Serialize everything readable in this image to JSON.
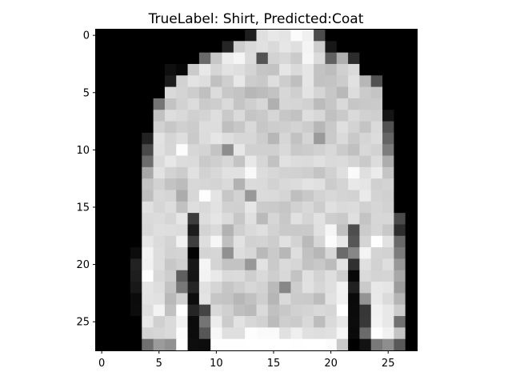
{
  "chart_data": {
    "type": "heatmap",
    "title": "TrueLabel: Shirt, Predicted:Coat",
    "xlabel": "",
    "ylabel": "",
    "colormap": "gray",
    "value_range": [
      0,
      255
    ],
    "xlim": [
      -0.5,
      27.5
    ],
    "ylim": [
      27.5,
      -0.5
    ],
    "x_ticks": [
      0,
      5,
      10,
      15,
      20,
      25
    ],
    "y_ticks": [
      0,
      5,
      10,
      15,
      20,
      25
    ],
    "grid": false,
    "image": [
      [
        0,
        0,
        0,
        0,
        0,
        0,
        0,
        0,
        0,
        0,
        0,
        0,
        0,
        30,
        223,
        232,
        228,
        251,
        240,
        75,
        0,
        0,
        0,
        0,
        0,
        0,
        0,
        0
      ],
      [
        0,
        0,
        0,
        0,
        0,
        0,
        0,
        0,
        0,
        0,
        0,
        37,
        205,
        217,
        225,
        218,
        230,
        223,
        244,
        205,
        23,
        0,
        0,
        0,
        0,
        0,
        0,
        0
      ],
      [
        0,
        0,
        0,
        0,
        0,
        0,
        0,
        0,
        0,
        106,
        199,
        236,
        245,
        219,
        83,
        210,
        215,
        203,
        246,
        219,
        97,
        175,
        44,
        0,
        0,
        0,
        0,
        0
      ],
      [
        0,
        0,
        0,
        0,
        0,
        0,
        15,
        7,
        202,
        232,
        214,
        226,
        222,
        212,
        197,
        195,
        230,
        218,
        229,
        195,
        189,
        208,
        218,
        0,
        0,
        0,
        0,
        0
      ],
      [
        0,
        0,
        0,
        0,
        0,
        0,
        28,
        210,
        227,
        222,
        193,
        207,
        232,
        205,
        201,
        222,
        205,
        191,
        229,
        194,
        196,
        204,
        225,
        183,
        81,
        0,
        0,
        0
      ],
      [
        0,
        0,
        0,
        0,
        0,
        0,
        217,
        212,
        205,
        192,
        220,
        200,
        196,
        183,
        188,
        195,
        215,
        207,
        227,
        213,
        199,
        185,
        221,
        203,
        196,
        0,
        0,
        0
      ],
      [
        0,
        0,
        0,
        0,
        0,
        116,
        195,
        210,
        220,
        203,
        206,
        218,
        197,
        207,
        215,
        176,
        214,
        213,
        209,
        187,
        198,
        217,
        198,
        201,
        202,
        0,
        0,
        0
      ],
      [
        0,
        0,
        0,
        0,
        0,
        193,
        221,
        217,
        208,
        212,
        222,
        202,
        218,
        197,
        201,
        214,
        199,
        194,
        222,
        215,
        193,
        202,
        218,
        209,
        207,
        21,
        0,
        0
      ],
      [
        0,
        0,
        0,
        0,
        0,
        209,
        199,
        208,
        204,
        221,
        221,
        191,
        199,
        217,
        199,
        205,
        207,
        211,
        204,
        183,
        201,
        223,
        211,
        196,
        218,
        82,
        0,
        0
      ],
      [
        0,
        0,
        0,
        0,
        34,
        226,
        213,
        222,
        202,
        220,
        230,
        222,
        215,
        215,
        205,
        183,
        214,
        194,
        213,
        155,
        202,
        218,
        201,
        213,
        220,
        101,
        0,
        0
      ],
      [
        0,
        0,
        0,
        0,
        73,
        224,
        214,
        252,
        215,
        212,
        196,
        141,
        231,
        208,
        208,
        208,
        217,
        201,
        204,
        209,
        216,
        203,
        192,
        216,
        210,
        125,
        0,
        0
      ],
      [
        0,
        0,
        0,
        0,
        108,
        218,
        231,
        220,
        219,
        202,
        207,
        215,
        195,
        232,
        214,
        194,
        225,
        220,
        219,
        224,
        218,
        219,
        212,
        202,
        220,
        173,
        0,
        0
      ],
      [
        0,
        0,
        0,
        0,
        168,
        226,
        211,
        204,
        225,
        210,
        216,
        225,
        225,
        249,
        220,
        215,
        210,
        209,
        206,
        196,
        209,
        223,
        250,
        223,
        235,
        197,
        0,
        0
      ],
      [
        0,
        0,
        0,
        0,
        195,
        210,
        195,
        188,
        216,
        214,
        212,
        218,
        178,
        219,
        218,
        210,
        217,
        220,
        227,
        224,
        204,
        212,
        232,
        229,
        208,
        211,
        0,
        0
      ],
      [
        0,
        0,
        0,
        0,
        190,
        216,
        213,
        172,
        215,
        254,
        228,
        199,
        210,
        152,
        219,
        218,
        213,
        191,
        200,
        211,
        216,
        212,
        210,
        234,
        211,
        208,
        0,
        0
      ],
      [
        0,
        0,
        0,
        0,
        224,
        214,
        221,
        193,
        222,
        217,
        226,
        209,
        208,
        230,
        203,
        202,
        198,
        209,
        216,
        205,
        224,
        218,
        220,
        209,
        214,
        210,
        0,
        0
      ],
      [
        0,
        0,
        0,
        0,
        218,
        220,
        214,
        230,
        60,
        221,
        229,
        219,
        199,
        224,
        186,
        214,
        200,
        225,
        213,
        225,
        206,
        202,
        224,
        196,
        215,
        215,
        75,
        0
      ],
      [
        0,
        0,
        0,
        0,
        216,
        223,
        222,
        220,
        27,
        211,
        218,
        178,
        207,
        218,
        223,
        210,
        202,
        201,
        202,
        224,
        246,
        192,
        78,
        203,
        214,
        200,
        46,
        0
      ],
      [
        0,
        0,
        0,
        0,
        230,
        219,
        212,
        241,
        62,
        222,
        246,
        192,
        226,
        209,
        211,
        205,
        225,
        211,
        186,
        214,
        252,
        232,
        86,
        212,
        254,
        226,
        105,
        0
      ],
      [
        0,
        0,
        0,
        12,
        243,
        221,
        210,
        212,
        3,
        212,
        214,
        144,
        221,
        215,
        185,
        202,
        183,
        222,
        193,
        183,
        215,
        107,
        135,
        244,
        212,
        210,
        124,
        0
      ],
      [
        0,
        0,
        0,
        34,
        241,
        221,
        199,
        208,
        24,
        245,
        212,
        195,
        195,
        152,
        226,
        202,
        218,
        214,
        195,
        200,
        188,
        227,
        48,
        224,
        210,
        222,
        152,
        0
      ],
      [
        0,
        0,
        0,
        30,
        255,
        216,
        206,
        95,
        20,
        243,
        233,
        218,
        219,
        206,
        217,
        206,
        216,
        195,
        224,
        211,
        222,
        206,
        7,
        218,
        212,
        213,
        168,
        0
      ],
      [
        0,
        0,
        0,
        24,
        228,
        222,
        195,
        120,
        36,
        225,
        213,
        198,
        206,
        215,
        210,
        186,
        135,
        205,
        225,
        214,
        223,
        242,
        32,
        202,
        232,
        229,
        156,
        0
      ],
      [
        0,
        0,
        0,
        11,
        227,
        225,
        185,
        209,
        12,
        227,
        198,
        196,
        183,
        193,
        207,
        182,
        218,
        203,
        202,
        189,
        226,
        241,
        10,
        148,
        233,
        219,
        181,
        0
      ],
      [
        0,
        0,
        0,
        12,
        222,
        243,
        193,
        255,
        37,
        68,
        217,
        208,
        191,
        186,
        218,
        193,
        200,
        209,
        212,
        217,
        214,
        255,
        11,
        55,
        241,
        232,
        205,
        0
      ],
      [
        0,
        0,
        0,
        0,
        232,
        208,
        218,
        242,
        11,
        116,
        236,
        204,
        226,
        215,
        210,
        188,
        206,
        203,
        217,
        189,
        218,
        231,
        12,
        56,
        243,
        232,
        113,
        0
      ],
      [
        0,
        0,
        0,
        0,
        211,
        214,
        218,
        252,
        12,
        86,
        247,
        223,
        223,
        253,
        250,
        250,
        225,
        239,
        224,
        222,
        224,
        245,
        10,
        107,
        253,
        241,
        196,
        0
      ],
      [
        0,
        0,
        0,
        0,
        112,
        155,
        145,
        255,
        14,
        12,
        254,
        254,
        254,
        255,
        255,
        255,
        255,
        254,
        255,
        255,
        252,
        201,
        0,
        18,
        121,
        142,
        89,
        0
      ]
    ]
  }
}
